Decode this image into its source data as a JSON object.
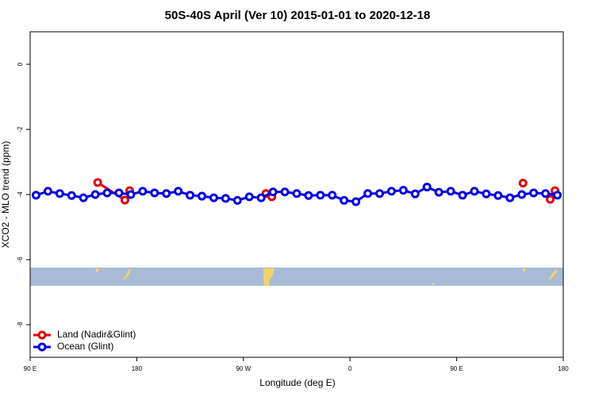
{
  "chart_data": {
    "type": "line",
    "title": "50S-40S April (Ver 10)   2015-01-01 to 2020-12-18",
    "xlabel": "Longitude (deg E)",
    "ylabel": "XCO2 - MLO trend (ppm)",
    "xlim": [
      90,
      540
    ],
    "xticks": [
      {
        "value": 90,
        "label": "90 E"
      },
      {
        "value": 180,
        "label": "180"
      },
      {
        "value": 270,
        "label": "90 W"
      },
      {
        "value": 360,
        "label": "0"
      },
      {
        "value": 450,
        "label": "90 E"
      },
      {
        "value": 540,
        "label": "180"
      }
    ],
    "ylim": [
      -9,
      1
    ],
    "yticks": [
      0,
      -2,
      -4,
      -6,
      -8
    ],
    "legend": "bottom-left",
    "series": [
      {
        "name": "Land (Nadir&Glint)",
        "color": "#e00000",
        "x": [
          147,
          170,
          172,
          174,
          230,
          289,
          294,
          400,
          506,
          515,
          529,
          533
        ],
        "values": [
          -3.63,
          -4.17,
          null,
          -3.88,
          null,
          -3.97,
          -4.07,
          null,
          -3.65,
          null,
          -4.15,
          -3.88
        ]
      },
      {
        "name": "Ocean (Glint)",
        "color": "#0000e0",
        "x": [
          95,
          105,
          115,
          125,
          135,
          145,
          155,
          165,
          175,
          185,
          195,
          205,
          215,
          225,
          235,
          245,
          255,
          265,
          275,
          285,
          295,
          305,
          315,
          325,
          335,
          345,
          355,
          365,
          375,
          385,
          395,
          405,
          415,
          425,
          435,
          445,
          455,
          465,
          475,
          485,
          495,
          505,
          515,
          525,
          535
        ],
        "values": [
          -4.02,
          -3.9,
          -3.97,
          -4.03,
          -4.1,
          -4.0,
          -3.95,
          -3.95,
          -4.0,
          -3.9,
          -3.95,
          -3.97,
          -3.9,
          -4.02,
          -4.05,
          -4.1,
          -4.12,
          -4.18,
          -4.07,
          -4.1,
          -3.92,
          -3.92,
          -3.97,
          -4.03,
          -4.02,
          -4.02,
          -4.18,
          -4.22,
          -3.97,
          -3.97,
          -3.9,
          -3.87,
          -3.98,
          -3.77,
          -3.93,
          -3.9,
          -4.02,
          -3.9,
          -3.98,
          -4.03,
          -4.1,
          -4.0,
          -3.95,
          -3.97,
          -4.02
        ]
      }
    ]
  }
}
